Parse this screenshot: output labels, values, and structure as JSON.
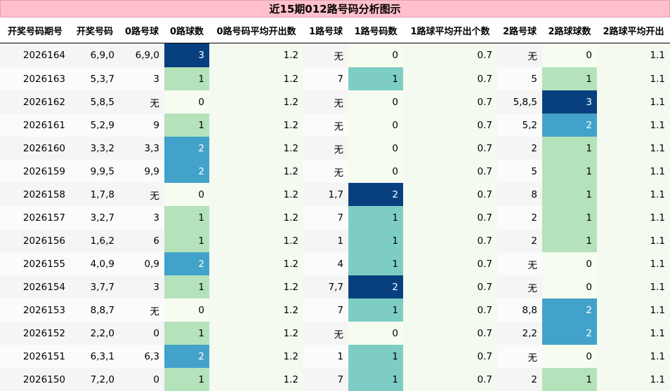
{
  "title": "近15期012路号码分析图示",
  "headers": [
    "开奖号码期号",
    "开奖号码",
    "0路号球",
    "0路球数",
    "0路号码平均开出数",
    "1路号球",
    "1路号码数",
    "1路球平均开出个数",
    "2路号球",
    "2路球球数",
    "2路球平均开出"
  ],
  "rows": [
    [
      "2026164",
      "6,9,0",
      "6,9,0",
      "3",
      "1.2",
      "无",
      "0",
      "0.7",
      "无",
      "0",
      "1.1"
    ],
    [
      "2026163",
      "5,3,7",
      "3",
      "1",
      "1.2",
      "7",
      "1",
      "0.7",
      "5",
      "1",
      "1.1"
    ],
    [
      "2026162",
      "5,8,5",
      "无",
      "0",
      "1.2",
      "无",
      "0",
      "0.7",
      "5,8,5",
      "3",
      "1.1"
    ],
    [
      "2026161",
      "5,2,9",
      "9",
      "1",
      "1.2",
      "无",
      "0",
      "0.7",
      "5,2",
      "2",
      "1.1"
    ],
    [
      "2026160",
      "3,3,2",
      "3,3",
      "2",
      "1.2",
      "无",
      "0",
      "0.7",
      "2",
      "1",
      "1.1"
    ],
    [
      "2026159",
      "9,9,5",
      "9,9",
      "2",
      "1.2",
      "无",
      "0",
      "0.7",
      "5",
      "1",
      "1.1"
    ],
    [
      "2026158",
      "1,7,8",
      "无",
      "0",
      "1.2",
      "1,7",
      "2",
      "0.7",
      "8",
      "1",
      "1.1"
    ],
    [
      "2026157",
      "3,2,7",
      "3",
      "1",
      "1.2",
      "7",
      "1",
      "0.7",
      "2",
      "1",
      "1.1"
    ],
    [
      "2026156",
      "1,6,2",
      "6",
      "1",
      "1.2",
      "1",
      "1",
      "0.7",
      "2",
      "1",
      "1.1"
    ],
    [
      "2026155",
      "4,0,9",
      "0,9",
      "2",
      "1.2",
      "4",
      "1",
      "0.7",
      "无",
      "0",
      "1.1"
    ],
    [
      "2026154",
      "3,7,7",
      "3",
      "1",
      "1.2",
      "7,7",
      "2",
      "0.7",
      "无",
      "0",
      "1.1"
    ],
    [
      "2026153",
      "8,8,7",
      "无",
      "0",
      "1.2",
      "7",
      "1",
      "0.7",
      "8,8",
      "2",
      "1.1"
    ],
    [
      "2026152",
      "2,2,0",
      "0",
      "1",
      "1.2",
      "无",
      "0",
      "0.7",
      "2,2",
      "2",
      "1.1"
    ],
    [
      "2026151",
      "6,3,1",
      "6,3",
      "2",
      "1.2",
      "1",
      "1",
      "0.7",
      "无",
      "0",
      "1.1"
    ],
    [
      "2026150",
      "7,2,0",
      "0",
      "1",
      "1.2",
      "7",
      "1",
      "0.7",
      "2",
      "1",
      "1.1"
    ]
  ],
  "colors": {
    "title_bg": "#ffc0cb",
    "count_0": "#f7fcf0",
    "count_1": "#b4e2bb",
    "count_1_route1": "#7ecdc4",
    "count_2": "#43a2ca",
    "count_3": "#08407f"
  }
}
